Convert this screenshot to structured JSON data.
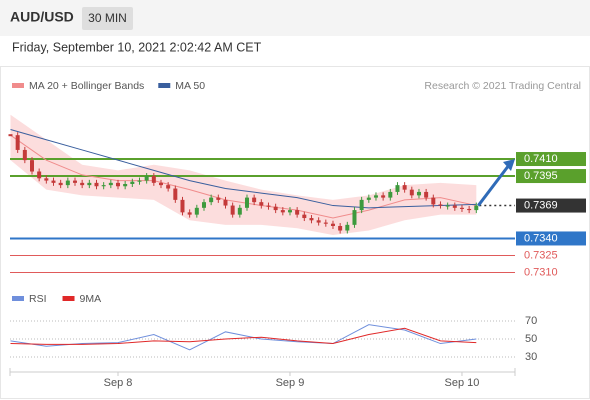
{
  "header": {
    "symbol": "AUD/USD",
    "interval": "30 MIN",
    "timestamp": "Friday, September 10, 2021 2:02:42 AM CET"
  },
  "chart_data": [
    {
      "type": "candlestick",
      "source": "Research © 2021 Trading Central",
      "x": [
        -15,
        -14,
        -13,
        -12,
        -11,
        -10,
        -9,
        -8,
        -7,
        -6,
        -5,
        -4,
        -3,
        -2,
        -1,
        0,
        1,
        2,
        3,
        4,
        5,
        6,
        7,
        8,
        9,
        10,
        11,
        12,
        13,
        14,
        15,
        16,
        17,
        18,
        19,
        20,
        21,
        22,
        23,
        24,
        25,
        26,
        27,
        28,
        29,
        30,
        31,
        32,
        33,
        34,
        35,
        36,
        37,
        38,
        39,
        40,
        41,
        42,
        43,
        44,
        45,
        46,
        47,
        48,
        49,
        50
      ],
      "close": [
        0.7431,
        0.7418,
        0.7409,
        0.7399,
        0.7393,
        0.7391,
        0.7389,
        0.7387,
        0.7391,
        0.7389,
        0.7387,
        0.7389,
        0.7386,
        0.7387,
        0.7389,
        0.7386,
        0.7388,
        0.739,
        0.7391,
        0.7395,
        0.7389,
        0.7387,
        0.7384,
        0.7374,
        0.7363,
        0.7361,
        0.7367,
        0.7372,
        0.7376,
        0.7374,
        0.7369,
        0.7361,
        0.7367,
        0.7376,
        0.7372,
        0.7369,
        0.7368,
        0.7365,
        0.7363,
        0.7365,
        0.7361,
        0.7358,
        0.7356,
        0.7354,
        0.7353,
        0.7351,
        0.7347,
        0.7352,
        0.7365,
        0.7374,
        0.7376,
        0.7378,
        0.7376,
        0.7381,
        0.7387,
        0.7383,
        0.7378,
        0.7381,
        0.7376,
        0.737,
        0.7369,
        0.7369,
        0.7367,
        0.7366,
        0.7365,
        0.7369
      ],
      "up_color": "#3d9a3d",
      "down_color": "#c43a3a",
      "series": [
        {
          "name": "MA 20 + Bollinger Bands",
          "color": "#f08c8c",
          "band_color": "#fbd5d5",
          "x": [
            -15,
            -10,
            -5,
            0,
            5,
            10,
            15,
            20,
            25,
            30,
            35,
            40,
            45,
            50
          ],
          "values": [
            0.7431,
            0.7409,
            0.7396,
            0.7391,
            0.7391,
            0.7383,
            0.7374,
            0.7369,
            0.7365,
            0.7358,
            0.7365,
            0.7374,
            0.7376,
            0.7369
          ],
          "upper": [
            0.7449,
            0.7427,
            0.7405,
            0.74,
            0.7405,
            0.74,
            0.7391,
            0.7383,
            0.7378,
            0.7374,
            0.7378,
            0.7387,
            0.7389,
            0.7387
          ],
          "lower": [
            0.7409,
            0.7383,
            0.7378,
            0.7376,
            0.7374,
            0.7356,
            0.7352,
            0.7352,
            0.7349,
            0.7343,
            0.7347,
            0.7356,
            0.7361,
            0.7361
          ]
        },
        {
          "name": "MA 50",
          "color": "#3a5f9e",
          "x": [
            -15,
            -10,
            -5,
            0,
            5,
            10,
            15,
            20,
            25,
            30,
            35,
            40,
            45,
            50
          ],
          "values": [
            0.7436,
            0.7427,
            0.7418,
            0.7409,
            0.74,
            0.7391,
            0.7384,
            0.738,
            0.7376,
            0.7369,
            0.7367,
            0.7368,
            0.7369,
            0.737
          ]
        }
      ],
      "levels": [
        {
          "value": 0.741,
          "label": "0.7410",
          "color": "#5aa02c",
          "boxed": true
        },
        {
          "value": 0.7395,
          "color": "#5aa02c",
          "boxed": true
        },
        {
          "value": 0.7369,
          "color": "#333333",
          "boxed": true
        },
        {
          "value": 0.734,
          "label": "0.7340",
          "color": "#2f76c8",
          "boxed": true
        },
        {
          "value": 0.7325,
          "color": "#e05a5a",
          "boxed": false
        },
        {
          "value": 0.731,
          "label": "0.7310",
          "color": "#e05a5a",
          "boxed": false
        }
      ],
      "current": 0.7369,
      "target": 0.741,
      "arrow_color": "#2f6bb8",
      "xlim": [
        -15.07,
        55.4
      ],
      "ylim": [
        0.7299,
        0.7462
      ]
    },
    {
      "type": "line",
      "x": [
        -15,
        -10,
        -5,
        0,
        5,
        10,
        15,
        20,
        25,
        30,
        35,
        40,
        45,
        50
      ],
      "series": [
        {
          "name": "RSI",
          "color": "#6f8fdc",
          "values": [
            48,
            42,
            45,
            46,
            55,
            38,
            58,
            50,
            47,
            45,
            66,
            60,
            45,
            50
          ]
        },
        {
          "name": "9MA",
          "color": "#e02828",
          "values": [
            45,
            44,
            44,
            45,
            48,
            47,
            50,
            52,
            48,
            45,
            55,
            62,
            48,
            46
          ]
        }
      ],
      "xlim": [
        -15.07,
        55.4
      ],
      "ylim": [
        15.6,
        87.8
      ],
      "yticks": [
        70,
        50,
        30
      ],
      "xticks": [
        {
          "value": 0,
          "label": "Sep 8"
        },
        {
          "value": 24,
          "label": "Sep 9"
        },
        {
          "value": 48,
          "label": "Sep 10"
        }
      ]
    }
  ]
}
